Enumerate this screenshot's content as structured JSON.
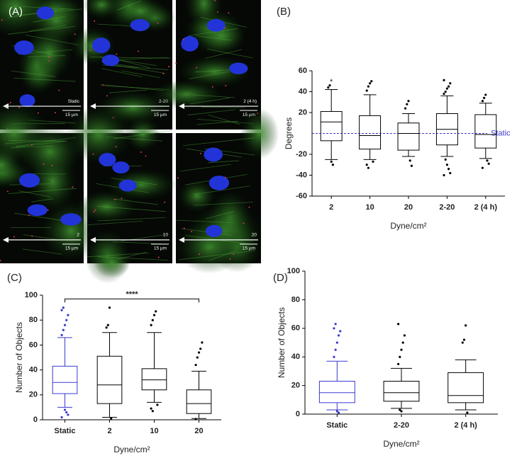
{
  "panel_a": {
    "label": "(A)",
    "tiles": [
      {
        "condition": "Static",
        "scale": "15 µm"
      },
      {
        "condition": "2-20",
        "scale": "15 µm"
      },
      {
        "condition": "2 (4 h)",
        "scale": "15 µm"
      },
      {
        "condition": "2",
        "scale": "15 µm"
      },
      {
        "condition": "10",
        "scale": "15 µm"
      },
      {
        "condition": "20",
        "scale": "15 µm"
      }
    ]
  },
  "chart_data": [
    {
      "type": "box",
      "panel": "(B)",
      "y_label": "Degrees",
      "x_label": "Dyne/cm²",
      "categories": [
        "2",
        "10",
        "20",
        "2-20",
        "2 (4 h)"
      ],
      "box_colors": [
        "#000000",
        "#000000",
        "#000000",
        "#000000",
        "#000000"
      ],
      "whislo": [
        -25,
        -25,
        -22,
        -22,
        -24
      ],
      "q1": [
        -7,
        -15,
        -16,
        -11,
        -14
      ],
      "med": [
        11,
        -2,
        0,
        4,
        -1
      ],
      "q3": [
        21,
        17,
        10,
        19,
        18
      ],
      "whishi": [
        42,
        37,
        19,
        36,
        29
      ],
      "outliers": [
        [
          44,
          46,
          -27,
          -30
        ],
        [
          41,
          45,
          48,
          50,
          -27,
          -30,
          -33
        ],
        [
          24,
          28,
          31,
          -26,
          -31
        ],
        [
          38,
          40,
          43,
          45,
          48,
          51,
          -25,
          -30,
          -34,
          -38,
          -40
        ],
        [
          31,
          34,
          37,
          -26,
          -29,
          -33
        ]
      ],
      "ylim": [
        -60,
        60
      ],
      "yticks": [
        -60,
        -40,
        -20,
        20,
        40,
        60
      ],
      "reference_line": {
        "value": 0,
        "label": "Static",
        "color": "#3a3acf"
      },
      "annotations": [
        {
          "text": "*",
          "category": "2",
          "y": 49
        }
      ]
    },
    {
      "type": "box",
      "panel": "(C)",
      "y_label": "Number of Objects",
      "x_label": "Dyne/cm²",
      "categories": [
        "Static",
        "2",
        "10",
        "20"
      ],
      "box_colors": [
        "#3a3acf",
        "#000000",
        "#000000",
        "#000000"
      ],
      "whislo": [
        10,
        2,
        14,
        1
      ],
      "q1": [
        21,
        13,
        24,
        5
      ],
      "med": [
        30,
        28,
        32,
        13
      ],
      "q3": [
        43,
        51,
        41,
        24
      ],
      "whishi": [
        66,
        70,
        70,
        39
      ],
      "outliers": [
        [
          68,
          72,
          76,
          80,
          84,
          88,
          90,
          8,
          6,
          4,
          2
        ],
        [
          74,
          76,
          90,
          1
        ],
        [
          76,
          80,
          84,
          87,
          12,
          9,
          7
        ],
        [
          44,
          50,
          54,
          57,
          62,
          0.5
        ]
      ],
      "ylim": [
        0,
        100
      ],
      "yticks": [
        0,
        20,
        40,
        60,
        80,
        100
      ],
      "annotations": [
        {
          "text": "****",
          "categories": [
            "Static",
            "20"
          ],
          "y": 97
        }
      ]
    },
    {
      "type": "box",
      "panel": "(D)",
      "y_label": "Number of Objects",
      "x_label": "Dyne/cm²",
      "categories": [
        "Static",
        "2-20",
        "2 (4 h)"
      ],
      "box_colors": [
        "#3a3acf",
        "#000000",
        "#000000"
      ],
      "whislo": [
        3,
        4,
        3
      ],
      "q1": [
        8,
        9,
        8
      ],
      "med": [
        15,
        15,
        13
      ],
      "q3": [
        23,
        23,
        29
      ],
      "whishi": [
        37,
        32,
        38
      ],
      "outliers": [
        [
          40,
          45,
          50,
          55,
          58,
          60,
          63,
          2,
          1
        ],
        [
          35,
          40,
          45,
          50,
          55,
          63,
          3,
          2
        ],
        [
          50,
          52,
          62,
          1
        ]
      ],
      "ylim": [
        0,
        100
      ],
      "yticks": [
        0,
        20,
        40,
        60,
        80,
        100
      ]
    }
  ]
}
